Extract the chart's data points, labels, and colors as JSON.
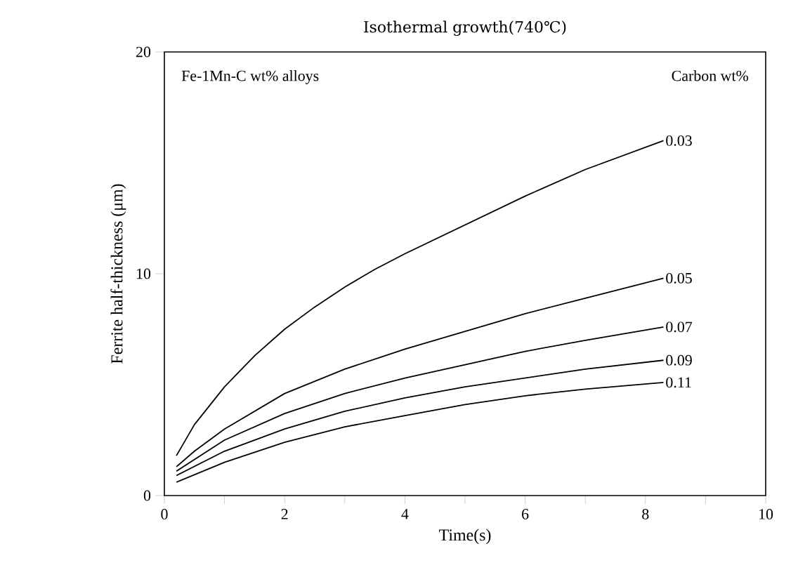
{
  "chart_data": {
    "type": "line",
    "title": "Isothermal growth(740℃)",
    "xlabel": "Time(s)",
    "ylabel": "Ferrite half-thickness (μm)",
    "annotations": [
      "Fe-1Mn-C wt% alloys",
      "Carbon wt%"
    ],
    "xlim": [
      0,
      10
    ],
    "ylim": [
      0,
      20
    ],
    "xticks": [
      0,
      {
        "value": 1,
        "label": null
      },
      2,
      {
        "value": 3,
        "label": null
      },
      4,
      {
        "value": 5,
        "label": null
      },
      6,
      {
        "value": 7,
        "label": null
      },
      8,
      {
        "value": 9,
        "label": null
      },
      10
    ],
    "yticks": [
      0,
      10,
      20
    ],
    "grid": false,
    "marker": "none",
    "line_style": "solid",
    "series": [
      {
        "name": "0.03",
        "color": "#000000",
        "x": [
          0.2,
          0.5,
          1,
          1.5,
          2,
          2.5,
          3,
          3.5,
          4,
          5,
          6,
          7,
          8.3
        ],
        "values": [
          1.8,
          3.2,
          4.9,
          6.3,
          7.5,
          8.5,
          9.4,
          10.2,
          10.9,
          12.2,
          13.5,
          14.7,
          16.0
        ]
      },
      {
        "name": "0.05",
        "color": "#000000",
        "x": [
          0.2,
          0.5,
          1,
          2,
          3,
          4,
          5,
          6,
          7,
          8.3
        ],
        "values": [
          1.3,
          2.0,
          3.0,
          4.6,
          5.7,
          6.6,
          7.4,
          8.2,
          8.9,
          9.8
        ]
      },
      {
        "name": "0.07",
        "color": "#000000",
        "x": [
          0.2,
          1,
          2,
          3,
          4,
          5,
          6,
          7,
          8.3
        ],
        "values": [
          1.1,
          2.5,
          3.7,
          4.6,
          5.3,
          5.9,
          6.5,
          7.0,
          7.6
        ]
      },
      {
        "name": "0.09",
        "color": "#000000",
        "x": [
          0.2,
          1,
          2,
          3,
          4,
          5,
          6,
          7,
          8.3
        ],
        "values": [
          0.9,
          2.0,
          3.0,
          3.8,
          4.4,
          4.9,
          5.3,
          5.7,
          6.1
        ]
      },
      {
        "name": "0.11",
        "color": "#000000",
        "x": [
          0.2,
          1,
          2,
          3,
          4,
          5,
          6,
          7,
          8.3
        ],
        "values": [
          0.6,
          1.5,
          2.4,
          3.1,
          3.6,
          4.1,
          4.5,
          4.8,
          5.1
        ]
      }
    ]
  }
}
